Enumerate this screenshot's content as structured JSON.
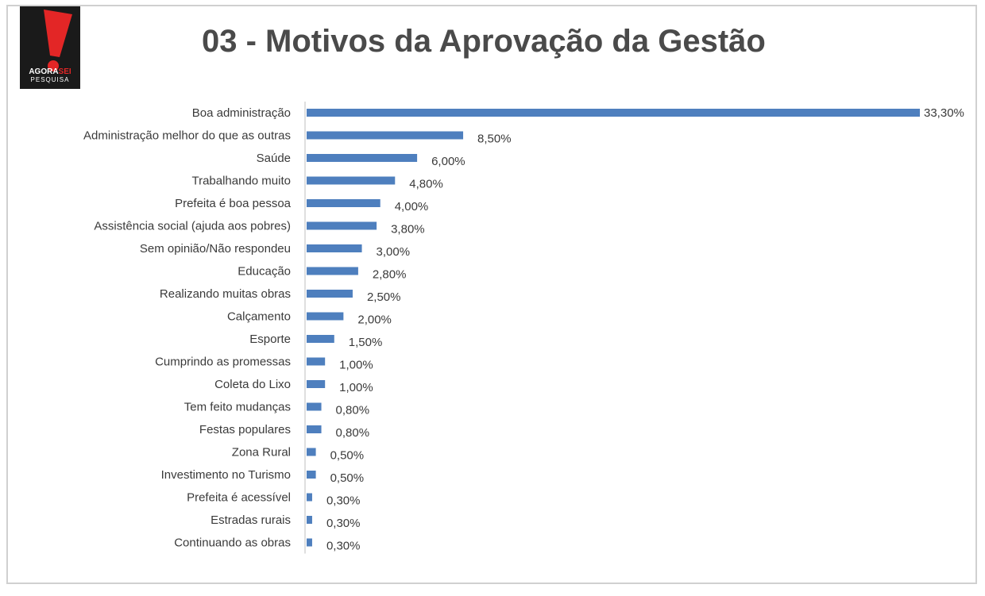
{
  "header": {
    "title": "03 - Motivos da Aprovação da Gestão",
    "logo_text_main": "AGORA",
    "logo_text_accent": "SEI",
    "logo_text_sub": "PESQUISA"
  },
  "colors": {
    "bar": "#4e7fbe",
    "title": "#4a4a4a",
    "logo_bg": "#1a1a1a",
    "logo_accent": "#e32626"
  },
  "chart_data": {
    "type": "bar",
    "orientation": "horizontal",
    "title": "03 - Motivos da Aprovação da Gestão",
    "xlabel": "",
    "ylabel": "",
    "grid": false,
    "legend": "none",
    "xlim": [
      0,
      33.3
    ],
    "categories": [
      "Boa administração",
      "Administração melhor do que as outras",
      "Saúde",
      "Trabalhando muito",
      "Prefeita é boa pessoa",
      "Assistência social (ajuda aos pobres)",
      "Sem opinião/Não respondeu",
      "Educação",
      "Realizando muitas obras",
      "Calçamento",
      "Esporte",
      "Cumprindo as promessas",
      "Coleta do Lixo",
      "Tem feito mudanças",
      "Festas populares",
      "Zona Rural",
      "Investimento no Turismo",
      "Prefeita é acessível",
      "Estradas rurais",
      "Continuando as obras"
    ],
    "values": [
      33.3,
      8.5,
      6.0,
      4.8,
      4.0,
      3.8,
      3.0,
      2.8,
      2.5,
      2.0,
      1.5,
      1.0,
      1.0,
      0.8,
      0.8,
      0.5,
      0.5,
      0.3,
      0.3,
      0.3
    ],
    "value_labels": [
      "33,30%",
      "8,50%",
      "6,00%",
      "4,80%",
      "4,00%",
      "3,80%",
      "3,00%",
      "2,80%",
      "2,50%",
      "2,00%",
      "1,50%",
      "1,00%",
      "1,00%",
      "0,80%",
      "0,80%",
      "0,50%",
      "0,50%",
      "0,30%",
      "0,30%",
      "0,30%"
    ]
  }
}
